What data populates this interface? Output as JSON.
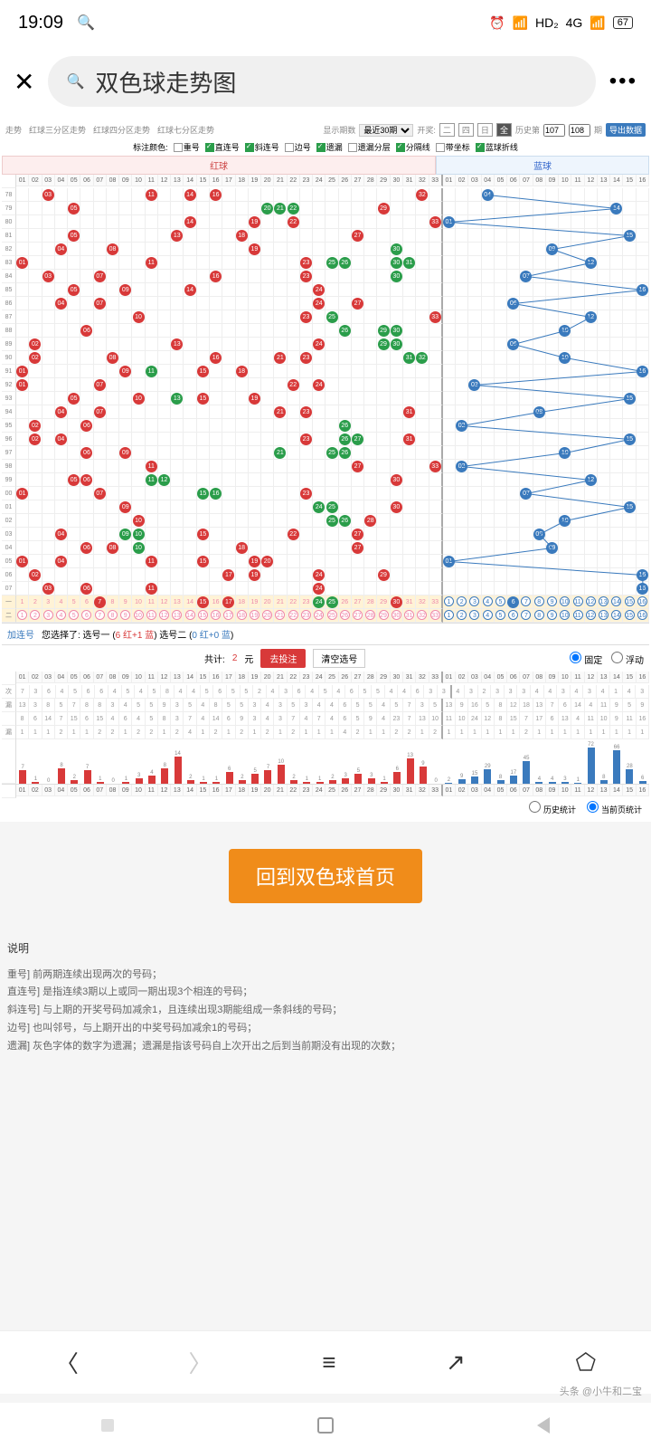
{
  "status": {
    "time": "19:09",
    "hd": "HD₂",
    "net": "4G",
    "battery": "67"
  },
  "header": {
    "search_text": "双色球走势图"
  },
  "filters": {
    "tabs": [
      "走势",
      "红球三分区走势",
      "红球四分区走势",
      "红球七分区走势"
    ],
    "period_label": "显示期数",
    "period_value": "最近30期",
    "draw_label": "开奖:",
    "days": [
      "二",
      "四",
      "日",
      "全"
    ],
    "history_label": "历史第",
    "history_from": "107",
    "history_to": "108",
    "history_unit": "期",
    "export": "导出数据"
  },
  "checks": {
    "label": "标注颜色:",
    "items": [
      {
        "t": "重号",
        "on": false
      },
      {
        "t": "直连号",
        "on": true
      },
      {
        "t": "斜连号",
        "on": true
      },
      {
        "t": "边号",
        "on": false
      },
      {
        "t": "遗漏",
        "on": true
      },
      {
        "t": "遗漏分层",
        "on": false
      },
      {
        "t": "分隔线",
        "on": true
      },
      {
        "t": "带坐标",
        "on": false
      },
      {
        "t": "蓝球折线",
        "on": true
      }
    ]
  },
  "chart": {
    "red_title": "红球",
    "blue_title": "蓝球",
    "red_nums": [
      "01",
      "02",
      "03",
      "04",
      "05",
      "06",
      "07",
      "08",
      "09",
      "10",
      "11",
      "12",
      "13",
      "14",
      "15",
      "16",
      "17",
      "18",
      "19",
      "20",
      "21",
      "22",
      "23",
      "24",
      "25",
      "26",
      "27",
      "28",
      "29",
      "30",
      "31",
      "32",
      "33"
    ],
    "blue_nums": [
      "01",
      "02",
      "03",
      "04",
      "05",
      "06",
      "07",
      "08",
      "09",
      "10",
      "11",
      "12",
      "13",
      "14",
      "15",
      "16"
    ],
    "rows": [
      {
        "p": "78",
        "r": [
          3,
          11,
          14,
          16,
          32
        ],
        "g": [],
        "b": 4
      },
      {
        "p": "79",
        "r": [
          5,
          29
        ],
        "g": [
          20,
          21,
          22
        ],
        "b": 14
      },
      {
        "p": "80",
        "r": [
          14,
          19,
          22,
          33
        ],
        "g": [],
        "b": 1
      },
      {
        "p": "81",
        "r": [
          5,
          13,
          18,
          27
        ],
        "g": [],
        "b": 15
      },
      {
        "p": "82",
        "r": [
          4,
          8,
          19
        ],
        "g": [
          30
        ],
        "b": 9
      },
      {
        "p": "83",
        "r": [
          1,
          11,
          23
        ],
        "g": [
          25,
          26,
          30,
          31
        ],
        "b": 12
      },
      {
        "p": "84",
        "r": [
          3,
          7,
          16,
          23
        ],
        "g": [
          30
        ],
        "b": 7
      },
      {
        "p": "85",
        "r": [
          5,
          9,
          14,
          24
        ],
        "g": [],
        "b": 16
      },
      {
        "p": "86",
        "r": [
          4,
          7,
          24,
          27
        ],
        "g": [],
        "b": 6
      },
      {
        "p": "87",
        "r": [
          10,
          23,
          33
        ],
        "g": [
          25
        ],
        "b": 12
      },
      {
        "p": "88",
        "r": [
          6
        ],
        "g": [
          26,
          29,
          30
        ],
        "b": 10
      },
      {
        "p": "89",
        "r": [
          2,
          13,
          24
        ],
        "g": [
          29,
          30
        ],
        "b": 6
      },
      {
        "p": "90",
        "r": [
          2,
          8,
          16,
          21,
          23
        ],
        "g": [
          31,
          32
        ],
        "b": 10
      },
      {
        "p": "91",
        "r": [
          1,
          9,
          15,
          18
        ],
        "g": [
          11
        ],
        "b": 16
      },
      {
        "p": "92",
        "r": [
          1,
          7,
          22,
          24
        ],
        "g": [],
        "b": 3
      },
      {
        "p": "93",
        "r": [
          5,
          10,
          15,
          19
        ],
        "g": [
          13
        ],
        "b": 15
      },
      {
        "p": "94",
        "r": [
          4,
          7,
          21,
          23,
          31
        ],
        "g": [],
        "b": 8
      },
      {
        "p": "95",
        "r": [
          2,
          6
        ],
        "g": [
          26
        ],
        "b": 2
      },
      {
        "p": "96",
        "r": [
          2,
          4,
          23,
          31
        ],
        "g": [
          26,
          27
        ],
        "b": 15
      },
      {
        "p": "97",
        "r": [
          6,
          9
        ],
        "g": [
          21,
          25,
          26
        ],
        "b": 10
      },
      {
        "p": "98",
        "r": [
          11,
          27,
          33
        ],
        "g": [],
        "b": 2
      },
      {
        "p": "99",
        "r": [
          5,
          6,
          30
        ],
        "g": [
          11,
          12
        ],
        "b": 12
      },
      {
        "p": "00",
        "r": [
          1,
          7,
          23
        ],
        "g": [
          15,
          16
        ],
        "b": 7
      },
      {
        "p": "01",
        "r": [
          9,
          30
        ],
        "g": [
          24,
          25
        ],
        "b": 15
      },
      {
        "p": "02",
        "r": [
          10,
          28
        ],
        "g": [
          25,
          26
        ],
        "b": 10
      },
      {
        "p": "03",
        "r": [
          4,
          15,
          22,
          27
        ],
        "g": [
          9,
          10
        ],
        "b": 8
      },
      {
        "p": "04",
        "r": [
          6,
          8,
          18,
          27
        ],
        "g": [
          10
        ],
        "b": 9
      },
      {
        "p": "05",
        "r": [
          1,
          4,
          11,
          15,
          19,
          20
        ],
        "g": [],
        "b": 1
      },
      {
        "p": "06",
        "r": [
          2,
          17,
          19,
          24,
          29
        ],
        "g": [],
        "b": 16
      },
      {
        "p": "07",
        "r": [
          3,
          6,
          11,
          24
        ],
        "g": [],
        "b": 16
      }
    ],
    "sel_row1": {
      "r": [
        7,
        15,
        17,
        30
      ],
      "g": [
        24,
        25
      ],
      "b": 6
    },
    "blue_path": [
      4,
      14,
      1,
      15,
      9,
      12,
      7,
      16,
      6,
      12,
      10,
      6,
      10,
      16,
      3,
      15,
      8,
      2,
      15,
      10,
      2,
      12,
      7,
      15,
      10,
      8,
      9,
      1,
      16,
      16
    ]
  },
  "bet": {
    "prefix": "加连号",
    "text_pre": "您选择了: 选号一 (",
    "red_sel": "6 红+1 蓝",
    "text_mid": ") 选号二 (",
    "blue_sel": "0 红+0 蓝",
    "text_post": ")",
    "total_label": "共计:",
    "total_val": "2",
    "unit": "元",
    "go": "去投注",
    "clear": "清空选号",
    "fixed": "固定",
    "float": "浮动"
  },
  "stats": {
    "rows": [
      {
        "label": "次",
        "v": [
          7,
          3,
          6,
          4,
          5,
          6,
          6,
          4,
          5,
          4,
          5,
          8,
          4,
          4,
          5,
          6,
          5,
          5,
          2,
          4,
          3,
          6,
          4,
          5,
          4,
          6,
          5,
          5,
          4,
          4,
          6,
          3,
          3,
          4,
          3,
          2,
          3,
          3,
          3,
          4,
          4,
          3,
          4,
          3,
          4,
          1,
          4,
          3
        ]
      },
      {
        "label": "漏",
        "v": [
          13,
          3,
          8,
          5,
          7,
          8,
          8,
          3,
          4,
          5,
          5,
          9,
          3,
          5,
          4,
          8,
          5,
          5,
          3,
          4,
          3,
          5,
          3,
          4,
          4,
          6,
          5,
          5,
          4,
          5,
          7,
          3,
          5,
          13,
          9,
          16,
          5,
          8,
          12,
          18,
          13,
          7,
          6,
          14,
          4,
          11,
          9,
          5,
          9
        ]
      },
      {
        "label": "",
        "v": [
          8,
          6,
          14,
          7,
          15,
          6,
          15,
          4,
          6,
          4,
          5,
          8,
          3,
          7,
          4,
          14,
          6,
          9,
          3,
          4,
          3,
          7,
          4,
          7,
          4,
          6,
          5,
          9,
          4,
          23,
          7,
          13,
          10,
          11,
          10,
          24,
          12,
          8,
          15,
          7,
          17,
          6,
          13,
          4,
          11,
          10,
          9,
          11,
          16
        ]
      },
      {
        "label": "漏",
        "v": [
          1,
          1,
          1,
          2,
          1,
          1,
          2,
          2,
          1,
          2,
          2,
          1,
          2,
          4,
          1,
          2,
          1,
          2,
          1,
          2,
          1,
          2,
          1,
          1,
          1,
          4,
          2,
          1,
          1,
          2,
          2,
          1,
          2,
          1,
          1,
          1,
          1,
          1,
          1,
          2,
          1,
          1,
          1,
          1,
          1,
          1,
          1,
          1,
          1
        ]
      }
    ],
    "bars_red": [
      7,
      1,
      0,
      8,
      2,
      7,
      1,
      0,
      1,
      3,
      4,
      8,
      14,
      2,
      1,
      1,
      6,
      2,
      5,
      7,
      10,
      2,
      1,
      1,
      2,
      3,
      5,
      3,
      1,
      6,
      13,
      9,
      0
    ],
    "bars_blue": [
      2,
      9,
      15,
      29,
      8,
      17,
      45,
      4,
      4,
      3,
      1,
      72,
      8,
      66,
      28,
      6
    ],
    "radio1": "历史统计",
    "radio2": "当前页统计"
  },
  "home_btn": "回到双色球首页",
  "explain": {
    "title": "说明",
    "lines": [
      "重号] 前两期连续出现两次的号码；",
      "直连号] 是指连续3期以上或同一期出现3个相连的号码；",
      "斜连号] 与上期的开奖号码加减余1，且连续出现3期能组成一条斜线的号码；",
      "边号] 也叫邻号，与上期开出的中奖号码加减余1的号码；",
      "遗漏] 灰色字体的数字为遗漏；遗漏是指该号码自上次开出之后到当前期没有出现的次数；"
    ]
  },
  "watermark": "头条 @小牛和二宝"
}
